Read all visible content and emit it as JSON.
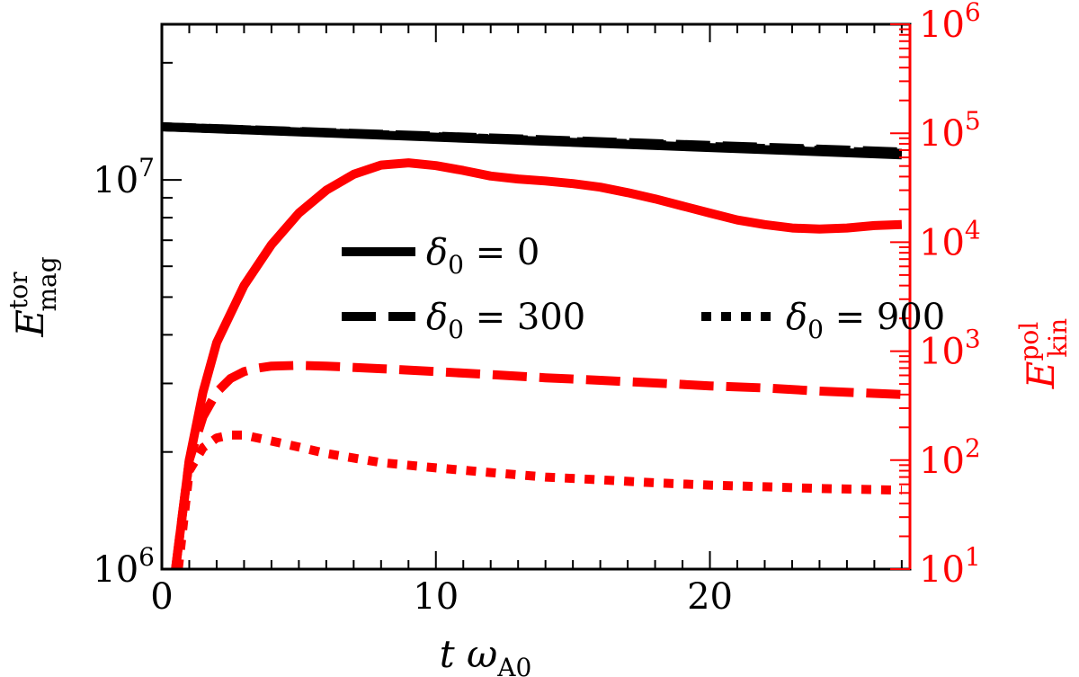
{
  "chart_data": {
    "type": "line",
    "x_range": [
      0,
      27.3
    ],
    "x_ticks": [
      {
        "value": 0,
        "label": "0"
      },
      {
        "value": 10,
        "label": "10"
      },
      {
        "value": 20,
        "label": "20"
      }
    ],
    "x_minor_step": 1,
    "xlabel": {
      "main": "t ω",
      "sub": "A0"
    },
    "left_axis": {
      "scale": "log",
      "range": [
        1000000,
        25118864
      ],
      "color": "#000000",
      "ylabel": {
        "main": "E",
        "sup": "tor",
        "sub": "mag"
      },
      "ticks": [
        {
          "value": 1000000,
          "base": "10",
          "exp": "6"
        },
        {
          "value": 10000000,
          "base": "10",
          "exp": "7"
        }
      ]
    },
    "right_axis": {
      "scale": "log",
      "range": [
        10,
        1000000
      ],
      "color": "#ff0000",
      "ylabel": {
        "main": "E",
        "sup": "pol",
        "sub": "kin"
      },
      "ticks": [
        {
          "value": 10,
          "base": "10",
          "exp": "1"
        },
        {
          "value": 100,
          "base": "10",
          "exp": "2"
        },
        {
          "value": 1000,
          "base": "10",
          "exp": "3"
        },
        {
          "value": 10000,
          "base": "10",
          "exp": "4"
        },
        {
          "value": 100000,
          "base": "10",
          "exp": "5"
        },
        {
          "value": 1000000,
          "base": "10",
          "exp": "6"
        }
      ]
    },
    "series": [
      {
        "name": "E_mag_tor δ0=0",
        "axis": "left",
        "color": "#000000",
        "style": "solid",
        "x": [
          0,
          27
        ],
        "y": [
          13700000,
          11600000
        ]
      },
      {
        "name": "E_mag_tor δ0=300",
        "axis": "left",
        "color": "#000000",
        "style": "dashed",
        "x": [
          0,
          27
        ],
        "y": [
          13700000,
          11800000
        ]
      },
      {
        "name": "E_mag_tor δ0=900",
        "axis": "left",
        "color": "#000000",
        "style": "dotted",
        "x": [
          0,
          27
        ],
        "y": [
          13700000,
          11700000
        ]
      },
      {
        "name": "E_kin_pol δ0=0",
        "axis": "right",
        "color": "#ff0000",
        "style": "solid",
        "x": [
          0.5,
          0.8,
          1,
          1.5,
          2,
          3,
          4,
          5,
          6,
          7,
          8,
          9,
          10,
          11,
          12,
          13,
          14,
          15,
          16,
          17,
          18,
          19,
          20,
          21,
          22,
          23,
          24,
          25,
          26,
          27
        ],
        "y": [
          10,
          40,
          100,
          420,
          1200,
          4000,
          9500,
          18500,
          30000,
          42000,
          51000,
          53500,
          50500,
          45500,
          40500,
          38000,
          36500,
          34500,
          32000,
          28500,
          25000,
          21500,
          18500,
          16000,
          14500,
          13500,
          13200,
          13500,
          14200,
          14500
        ]
      },
      {
        "name": "E_kin_pol δ0=300",
        "axis": "right",
        "color": "#ff0000",
        "style": "dashed",
        "x": [
          0.5,
          0.8,
          1,
          1.5,
          2,
          2.5,
          3,
          3.5,
          4,
          5,
          6,
          8,
          10,
          12,
          14,
          16,
          18,
          20,
          22,
          24,
          27
        ],
        "y": [
          10,
          40,
          100,
          250,
          420,
          560,
          650,
          700,
          730,
          740,
          730,
          690,
          650,
          610,
          570,
          540,
          510,
          480,
          460,
          430,
          400
        ]
      },
      {
        "name": "E_kin_pol δ0=900",
        "axis": "right",
        "color": "#ff0000",
        "style": "dotted",
        "x": [
          0.6,
          1,
          1.5,
          2,
          2.5,
          3,
          4,
          5,
          6,
          8,
          10,
          12,
          14,
          16,
          18,
          20,
          22,
          24,
          27
        ],
        "y": [
          10,
          80,
          130,
          160,
          170,
          170,
          150,
          132,
          115,
          95,
          85,
          77,
          70,
          66,
          62,
          59,
          57,
          55,
          53
        ]
      }
    ],
    "legend": {
      "placement": "center",
      "items": [
        {
          "style": "solid",
          "symbol": "δ",
          "sub": "0",
          "text": " = 0"
        },
        {
          "style": "dashed",
          "symbol": "δ",
          "sub": "0",
          "text": " = 300"
        },
        {
          "style": "dotted",
          "symbol": "δ",
          "sub": "0",
          "text": " = 900"
        }
      ]
    }
  }
}
